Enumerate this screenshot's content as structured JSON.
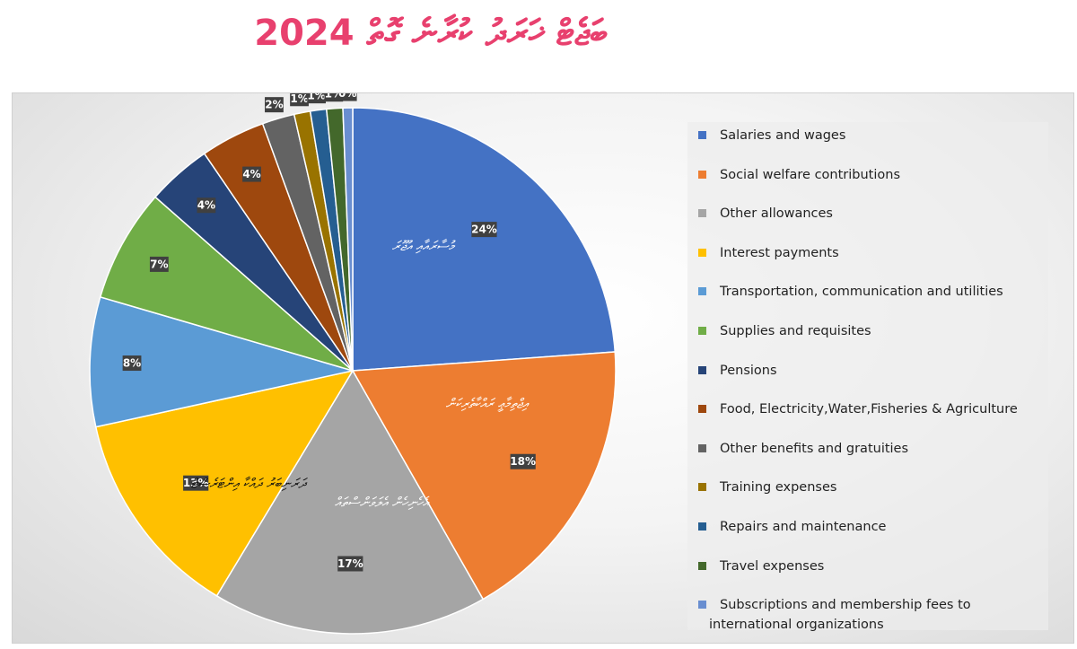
{
  "title": "ބަޖެޓް ޚަރަދު ކުރާނެ ގޮތް 2024",
  "chart_data": {
    "type": "pie",
    "title": "ބަޖެޓް ޚަރަދު ކުރާނެ ގޮތް 2024",
    "slices": [
      {
        "name": "Salaries and wages",
        "value": 24,
        "label": "24%",
        "color": "#4472c4",
        "inner_label": "މުސާރައާއި އުޖޫރަ"
      },
      {
        "name": "Social welfare contributions",
        "value": 18,
        "label": "18%",
        "color": "#ed7d31",
        "inner_label": "އިޖްތިމާޢީ ރައްކާތެރިކަން"
      },
      {
        "name": "Other allowances",
        "value": 17,
        "label": "17%",
        "color": "#a5a5a5",
        "inner_label": "އެހެނިހެން އެލަވަންސްތައް"
      },
      {
        "name": "Interest payments",
        "value": 13,
        "label": "13%",
        "color": "#ffc000",
        "inner_label": "ދަރަނިބަރު ދައްކާ އިންޓަރެސްޓް"
      },
      {
        "name": "Transportation, communication and utilities",
        "value": 8,
        "label": "8%",
        "color": "#5b9bd5"
      },
      {
        "name": "Supplies and requisites",
        "value": 7,
        "label": "7%",
        "color": "#70ad47"
      },
      {
        "name": "Pensions",
        "value": 4,
        "label": "4%",
        "color": "#264478"
      },
      {
        "name": "Food, Electricity,Water,Fisheries & Agriculture",
        "value": 4,
        "label": "4%",
        "color": "#9e480e"
      },
      {
        "name": "Other benefits and gratuities",
        "value": 2,
        "label": "2%",
        "color": "#636363"
      },
      {
        "name": "Training expenses",
        "value": 1,
        "label": "1%",
        "color": "#997300"
      },
      {
        "name": "Repairs and maintenance",
        "value": 1,
        "label": "1%",
        "color": "#255e91"
      },
      {
        "name": "Travel expenses",
        "value": 1,
        "label": "1%",
        "color": "#43682b"
      },
      {
        "name": "Subscriptions and membership fees to international organizations",
        "value": 0,
        "label": "0%",
        "color": "#698ed0"
      }
    ],
    "legend": "right"
  }
}
